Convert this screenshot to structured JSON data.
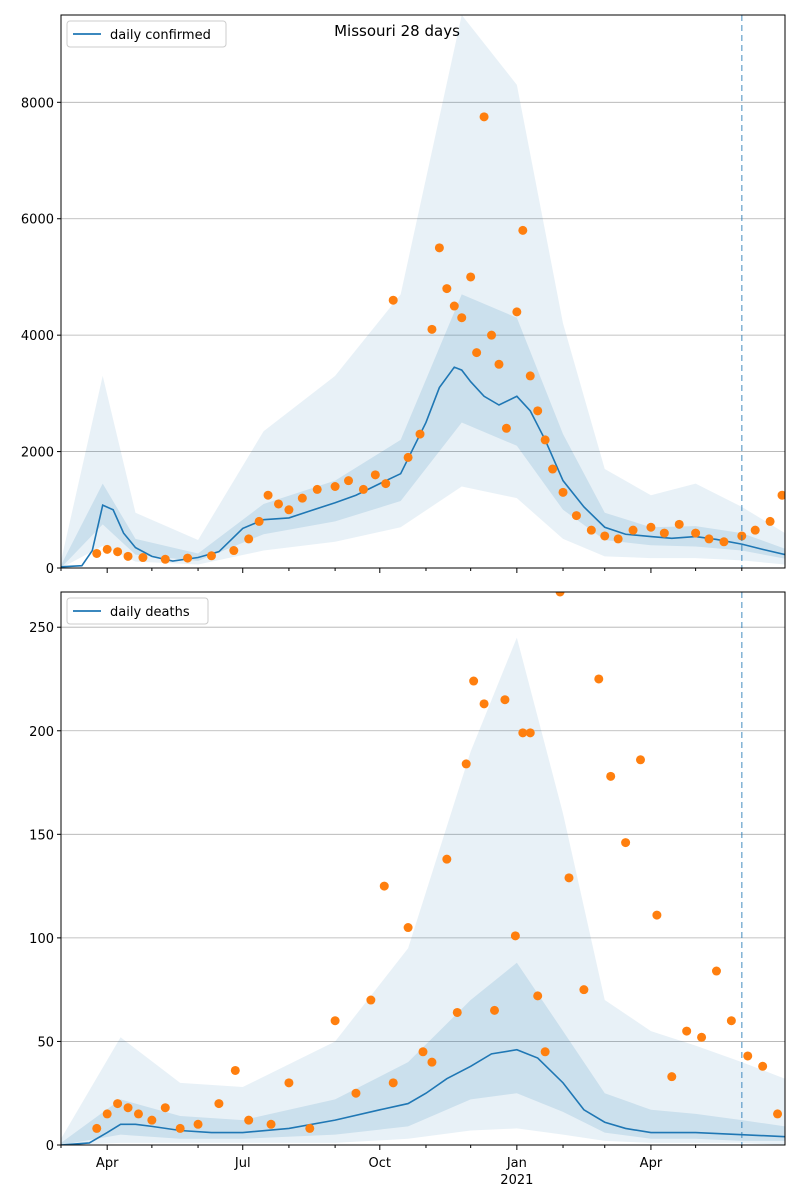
{
  "figure": {
    "title": "Missouri 28 days",
    "x_tick_labels": [
      "Apr",
      "Jul",
      "Oct",
      "Jan",
      "Apr"
    ],
    "x_year_label": "2021"
  },
  "colors": {
    "line": "#1f77b4",
    "points": "#ff7f0e",
    "band": "#1f77b4",
    "vline": "#1f77b4",
    "grid": "#b0b0b0"
  },
  "chart_data": [
    {
      "type": "line",
      "name": "confirmed",
      "legend": "daily confirmed",
      "legend_position": "upper-left",
      "grid": "horizontal",
      "x_range": [
        "2020-03-01",
        "2021-06-30"
      ],
      "ylim": [
        0,
        9500
      ],
      "y_ticks": [
        0,
        2000,
        4000,
        6000,
        8000
      ],
      "x_ticks": [
        "2020-04-01",
        "2020-07-01",
        "2020-10-01",
        "2021-01-01",
        "2021-04-01"
      ],
      "forecast_start": "2021-06-01",
      "median_line": {
        "x": [
          "2020-03-01",
          "2020-03-15",
          "2020-03-22",
          "2020-03-29",
          "2020-04-05",
          "2020-04-12",
          "2020-04-20",
          "2020-05-01",
          "2020-05-15",
          "2020-06-01",
          "2020-06-15",
          "2020-07-01",
          "2020-07-15",
          "2020-08-01",
          "2020-08-15",
          "2020-09-01",
          "2020-09-15",
          "2020-10-01",
          "2020-10-15",
          "2020-11-01",
          "2020-11-10",
          "2020-11-20",
          "2020-11-25",
          "2020-12-01",
          "2020-12-10",
          "2020-12-20",
          "2021-01-01",
          "2021-01-10",
          "2021-01-20",
          "2021-02-01",
          "2021-02-15",
          "2021-03-01",
          "2021-03-15",
          "2021-04-01",
          "2021-04-15",
          "2021-05-01",
          "2021-05-15",
          "2021-06-01",
          "2021-06-15",
          "2021-06-30"
        ],
        "y": [
          20,
          40,
          300,
          1080,
          1000,
          600,
          350,
          200,
          120,
          180,
          280,
          680,
          830,
          860,
          980,
          1120,
          1250,
          1450,
          1620,
          2500,
          3100,
          3450,
          3400,
          3200,
          2950,
          2800,
          2950,
          2700,
          2200,
          1500,
          1050,
          700,
          580,
          540,
          510,
          540,
          490,
          410,
          320,
          230
        ]
      },
      "band_inner": {
        "x": [
          "2020-03-01",
          "2020-03-29",
          "2020-04-20",
          "2020-06-01",
          "2020-07-15",
          "2020-09-01",
          "2020-10-15",
          "2020-11-25",
          "2021-01-01",
          "2021-02-01",
          "2021-03-01",
          "2021-04-01",
          "2021-05-01",
          "2021-06-01",
          "2021-06-30"
        ],
        "lower": [
          5,
          750,
          230,
          120,
          580,
          800,
          1150,
          2500,
          2100,
          1000,
          480,
          390,
          370,
          300,
          160
        ],
        "upper": [
          50,
          1450,
          500,
          250,
          1100,
          1500,
          2200,
          4700,
          4300,
          2300,
          950,
          700,
          720,
          600,
          330
        ]
      },
      "band_outer": {
        "x": [
          "2020-03-01",
          "2020-03-29",
          "2020-04-20",
          "2020-06-01",
          "2020-07-15",
          "2020-09-01",
          "2020-10-15",
          "2020-11-25",
          "2021-01-01",
          "2021-02-01",
          "2021-03-01",
          "2021-04-01",
          "2021-05-01",
          "2021-06-01",
          "2021-06-30"
        ],
        "lower": [
          0,
          380,
          110,
          60,
          300,
          450,
          700,
          1400,
          1200,
          500,
          200,
          170,
          170,
          130,
          60
        ],
        "upper": [
          120,
          3300,
          950,
          480,
          2350,
          3300,
          4700,
          9500,
          8300,
          4200,
          1700,
          1250,
          1450,
          1050,
          600
        ]
      },
      "observed": {
        "x": [
          "2020-03-25",
          "2020-04-01",
          "2020-04-08",
          "2020-04-15",
          "2020-04-25",
          "2020-05-10",
          "2020-05-25",
          "2020-06-10",
          "2020-06-25",
          "2020-07-05",
          "2020-07-12",
          "2020-07-18",
          "2020-07-25",
          "2020-08-01",
          "2020-08-10",
          "2020-08-20",
          "2020-09-01",
          "2020-09-10",
          "2020-09-20",
          "2020-09-28",
          "2020-10-05",
          "2020-10-10",
          "2020-10-20",
          "2020-10-28",
          "2020-11-05",
          "2020-11-10",
          "2020-11-15",
          "2020-11-20",
          "2020-11-25",
          "2020-12-01",
          "2020-12-05",
          "2020-12-10",
          "2020-12-15",
          "2020-12-20",
          "2020-12-25",
          "2021-01-01",
          "2021-01-05",
          "2021-01-10",
          "2021-01-15",
          "2021-01-20",
          "2021-01-25",
          "2021-02-01",
          "2021-02-10",
          "2021-02-20",
          "2021-03-01",
          "2021-03-10",
          "2021-03-20",
          "2021-04-01",
          "2021-04-10",
          "2021-04-20",
          "2021-05-01",
          "2021-05-10",
          "2021-05-20",
          "2021-06-01",
          "2021-06-10",
          "2021-06-20",
          "2021-06-28"
        ],
        "y": [
          250,
          320,
          280,
          200,
          180,
          150,
          170,
          210,
          300,
          500,
          800,
          1250,
          1100,
          1000,
          1200,
          1350,
          1400,
          1500,
          1350,
          1600,
          1450,
          4600,
          1900,
          2300,
          4100,
          5500,
          4800,
          4500,
          4300,
          5000,
          3700,
          7750,
          4000,
          3500,
          2400,
          4400,
          5800,
          3300,
          2700,
          2200,
          1700,
          1300,
          900,
          650,
          550,
          500,
          650,
          700,
          600,
          750,
          600,
          500,
          450,
          550,
          650,
          800,
          1250
        ]
      }
    },
    {
      "type": "line",
      "name": "deaths",
      "legend": "daily deaths",
      "legend_position": "upper-left",
      "grid": "horizontal",
      "x_range": [
        "2020-03-01",
        "2021-06-30"
      ],
      "ylim": [
        0,
        267
      ],
      "y_ticks": [
        0,
        50,
        100,
        150,
        200,
        250
      ],
      "x_ticks": [
        "2020-04-01",
        "2020-07-01",
        "2020-10-01",
        "2021-01-01",
        "2021-04-01"
      ],
      "forecast_start": "2021-06-01",
      "median_line": {
        "x": [
          "2020-03-01",
          "2020-03-20",
          "2020-04-01",
          "2020-04-10",
          "2020-04-20",
          "2020-05-01",
          "2020-05-20",
          "2020-06-10",
          "2020-07-01",
          "2020-08-01",
          "2020-09-01",
          "2020-10-01",
          "2020-10-20",
          "2020-11-01",
          "2020-11-15",
          "2020-12-01",
          "2020-12-15",
          "2021-01-01",
          "2021-01-15",
          "2021-02-01",
          "2021-02-15",
          "2021-03-01",
          "2021-03-15",
          "2021-04-01",
          "2021-05-01",
          "2021-06-01",
          "2021-06-30"
        ],
        "y": [
          0,
          1,
          6,
          10,
          10,
          9,
          7,
          6,
          6,
          8,
          12,
          17,
          20,
          25,
          32,
          38,
          44,
          46,
          42,
          30,
          17,
          11,
          8,
          6,
          6,
          5,
          4
        ]
      },
      "band_inner": {
        "x": [
          "2020-03-01",
          "2020-04-10",
          "2020-05-20",
          "2020-07-01",
          "2020-09-01",
          "2020-10-20",
          "2020-12-01",
          "2021-01-01",
          "2021-02-01",
          "2021-03-01",
          "2021-04-01",
          "2021-05-01",
          "2021-06-01",
          "2021-06-30"
        ],
        "lower": [
          0,
          5,
          3,
          3,
          5,
          9,
          22,
          25,
          16,
          6,
          3,
          3,
          2,
          2
        ],
        "upper": [
          1,
          22,
          14,
          12,
          22,
          40,
          70,
          88,
          55,
          25,
          17,
          15,
          12,
          9
        ]
      },
      "band_outer": {
        "x": [
          "2020-03-01",
          "2020-04-10",
          "2020-05-20",
          "2020-07-01",
          "2020-09-01",
          "2020-10-20",
          "2020-12-01",
          "2021-01-01",
          "2021-02-01",
          "2021-03-01",
          "2021-04-01",
          "2021-05-01",
          "2021-06-01",
          "2021-06-30"
        ],
        "lower": [
          0,
          1,
          1,
          1,
          1,
          3,
          7,
          8,
          5,
          2,
          1,
          1,
          1,
          0
        ],
        "upper": [
          3,
          52,
          30,
          28,
          50,
          95,
          190,
          245,
          160,
          70,
          55,
          48,
          40,
          32
        ]
      },
      "observed": {
        "x": [
          "2020-03-25",
          "2020-04-01",
          "2020-04-08",
          "2020-04-15",
          "2020-04-22",
          "2020-05-01",
          "2020-05-10",
          "2020-05-20",
          "2020-06-01",
          "2020-06-15",
          "2020-06-26",
          "2020-07-05",
          "2020-07-20",
          "2020-08-01",
          "2020-08-15",
          "2020-09-01",
          "2020-09-15",
          "2020-09-25",
          "2020-10-04",
          "2020-10-10",
          "2020-10-20",
          "2020-10-30",
          "2020-11-05",
          "2020-11-15",
          "2020-11-22",
          "2020-11-28",
          "2020-12-03",
          "2020-12-10",
          "2020-12-17",
          "2020-12-24",
          "2020-12-31",
          "2021-01-05",
          "2021-01-10",
          "2021-01-15",
          "2021-01-20",
          "2021-01-30",
          "2021-02-05",
          "2021-02-15",
          "2021-02-25",
          "2021-03-05",
          "2021-03-15",
          "2021-03-25",
          "2021-04-05",
          "2021-04-15",
          "2021-04-25",
          "2021-05-05",
          "2021-05-15",
          "2021-05-25",
          "2021-06-05",
          "2021-06-15",
          "2021-06-25"
        ],
        "y": [
          8,
          15,
          20,
          18,
          15,
          12,
          18,
          8,
          10,
          20,
          36,
          12,
          10,
          30,
          8,
          60,
          25,
          70,
          125,
          30,
          105,
          45,
          40,
          138,
          64,
          184,
          224,
          213,
          65,
          215,
          101,
          199,
          199,
          72,
          45,
          267,
          129,
          75,
          225,
          178,
          146,
          186,
          111,
          33,
          55,
          52,
          84,
          60,
          43,
          38,
          15
        ]
      }
    }
  ]
}
